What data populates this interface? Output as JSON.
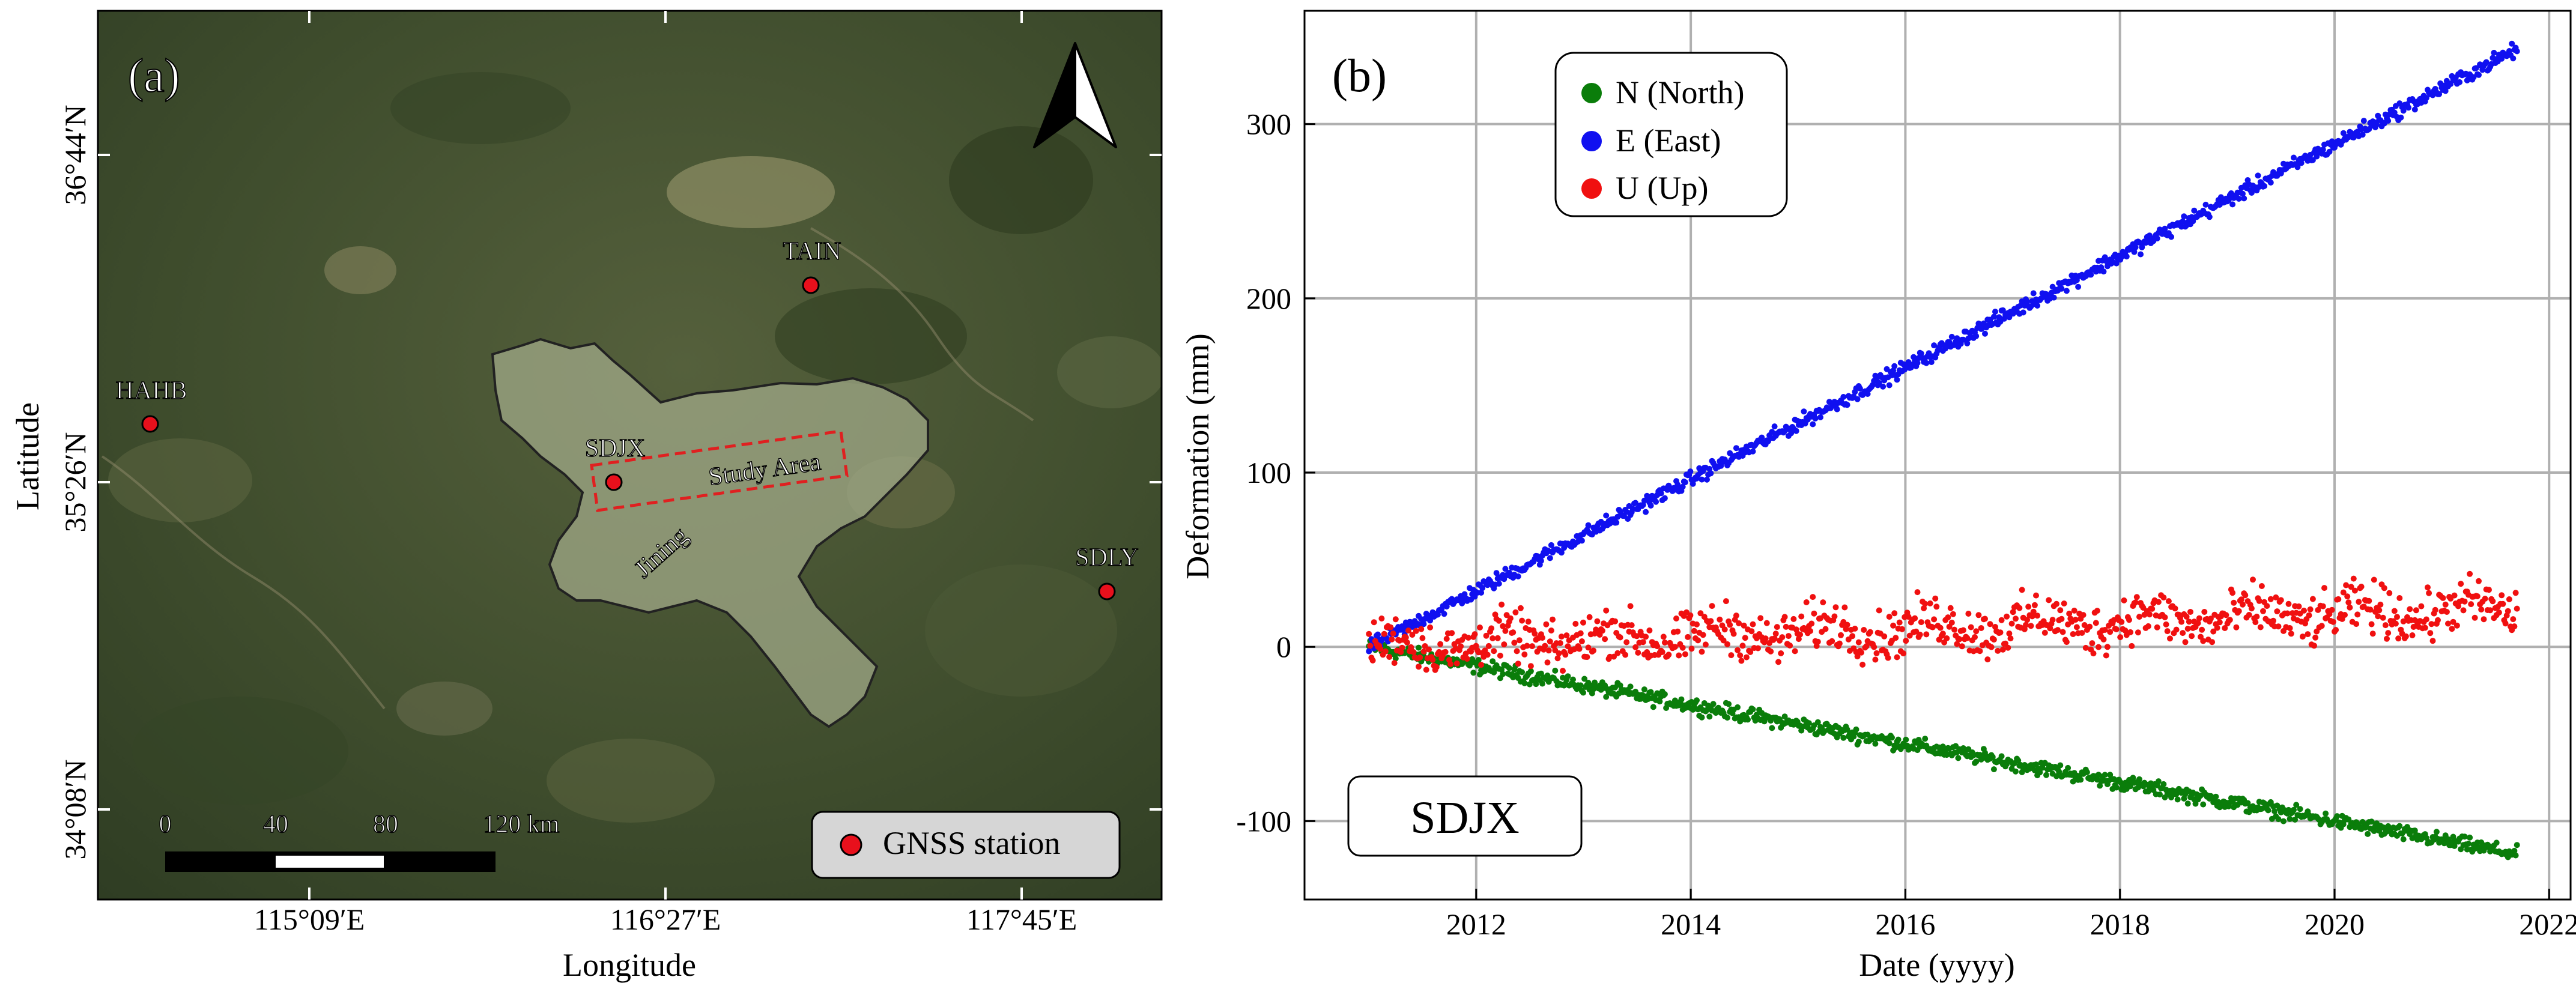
{
  "panel_a": {
    "label": "(a)",
    "xlabel": "Longitude",
    "ylabel": "Latitude",
    "x_ticks": [
      "115°09′E",
      "116°27′E",
      "117°45′E"
    ],
    "y_ticks": [
      "36°44′N",
      "35°26′N",
      "34°08′N"
    ],
    "stations": [
      {
        "name": "TAIN"
      },
      {
        "name": "HAHB"
      },
      {
        "name": "SDJX"
      },
      {
        "name": "SDLY"
      }
    ],
    "study_area_label": "Study Area",
    "city_label": "Jining",
    "scale_bar": {
      "labels": [
        "0",
        "40",
        "80",
        "120 km"
      ]
    },
    "legend_label": "GNSS station",
    "colors": {
      "station": "#e8101c",
      "study_area": "#e02020",
      "boundary": "#222222"
    }
  },
  "chart_data": {
    "type": "scatter",
    "label": "(b)",
    "station": "SDJX",
    "xlabel": "Date (yyyy)",
    "ylabel": "Deformation (mm)",
    "xlim": [
      2010.4,
      2022.2
    ],
    "ylim": [
      -145,
      365
    ],
    "x_ticks": [
      2012,
      2014,
      2016,
      2018,
      2020,
      2022
    ],
    "y_ticks": [
      -100,
      0,
      100,
      200,
      300
    ],
    "grid": true,
    "legend_position": "top-left",
    "series": [
      {
        "name": "N (North)",
        "color": "#0a7d0a",
        "x": [
          2011.0,
          2021.7
        ],
        "y": [
          0,
          -119
        ],
        "noise": 3
      },
      {
        "name": "E (East)",
        "color": "#1010f0",
        "x": [
          2011.0,
          2021.7
        ],
        "y": [
          0,
          343
        ],
        "noise": 3
      },
      {
        "name": "U (Up)",
        "color": "#f01010",
        "x": [
          2011.0,
          2021.7
        ],
        "y": [
          0,
          22
        ],
        "noise": 10
      }
    ]
  }
}
